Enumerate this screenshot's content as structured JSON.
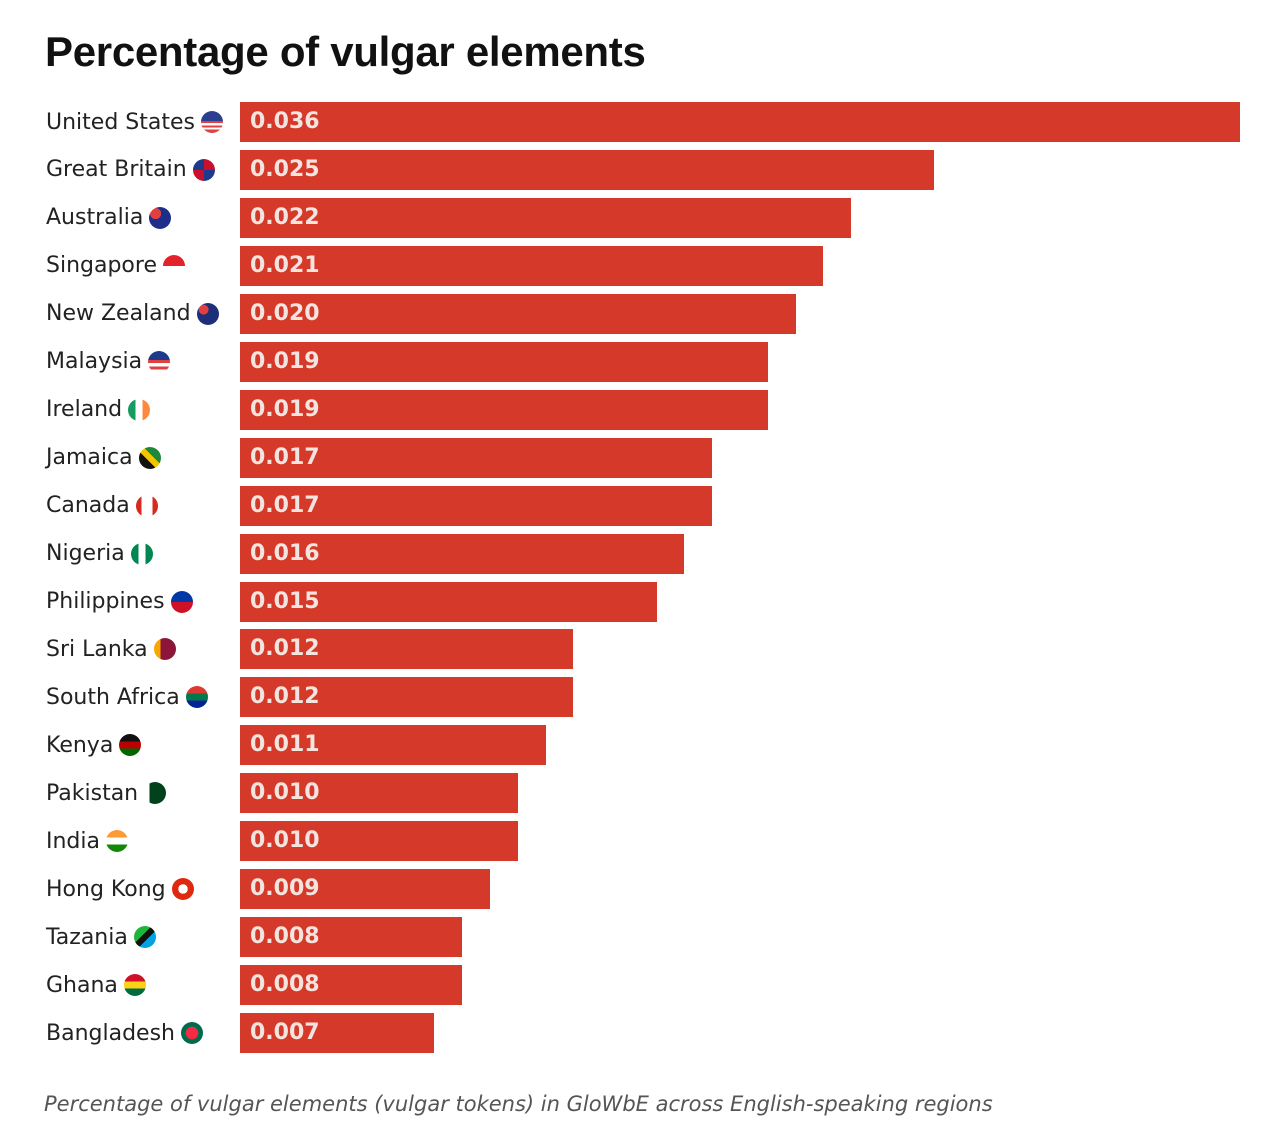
{
  "chart_data": {
    "type": "bar",
    "orientation": "horizontal",
    "title": "Percentage of vulgar elements",
    "caption": "Percentage of vulgar elements (vulgar tokens) in GloWbE across English-speaking regions",
    "xlim": [
      0,
      0.036
    ],
    "bar_color": "#d5392a",
    "categories": [
      "United States",
      "Great Britain",
      "Australia",
      "Singapore",
      "New Zealand",
      "Malaysia",
      "Ireland",
      "Jamaica",
      "Canada",
      "Nigeria",
      "Philippines",
      "Sri Lanka",
      "South Africa",
      "Kenya",
      "Pakistan",
      "India",
      "Hong Kong",
      "Tazania",
      "Ghana",
      "Bangladesh"
    ],
    "values": [
      0.036,
      0.025,
      0.022,
      0.021,
      0.02,
      0.019,
      0.019,
      0.017,
      0.017,
      0.016,
      0.015,
      0.012,
      0.012,
      0.011,
      0.01,
      0.01,
      0.009,
      0.008,
      0.008,
      0.007
    ],
    "value_labels": [
      "0.036",
      "0.025",
      "0.022",
      "0.021",
      "0.020",
      "0.019",
      "0.019",
      "0.017",
      "0.017",
      "0.016",
      "0.015",
      "0.012",
      "0.012",
      "0.011",
      "0.010",
      "0.010",
      "0.009",
      "0.008",
      "0.008",
      "0.007"
    ],
    "flag_icons": [
      "linear-gradient(180deg,#2a3f8f 0 45%,#e24040 45% 55%,#fff 55% 65%,#e24040 65% 75%,#fff 75% 85%,#e24040 85%)",
      "conic-gradient(#c8102e 0 25%,#1e3a8a 0 50%,#c8102e 0 75%,#1e3a8a 0)",
      "radial-gradient(circle at 30% 30%,#e24040 0 25%,#1e2f8a 26%)",
      "linear-gradient(180deg,#e4222a 0 50%,#fff 50%)",
      "radial-gradient(circle at 30% 30%,#e24040 0 22%,#1e2f7a 23%)",
      "linear-gradient(180deg,#1e3a8a 0 40%,#e24040 40% 55%,#fff 55% 70%,#e24040 70% 85%,#fff 85%)",
      "linear-gradient(90deg,#169b62 0 33%,#fff 33% 66%,#ff883e 66%)",
      "linear-gradient(45deg,#111 0 40%,#f5c400 40% 60%,#1a8a3a 60%)",
      "linear-gradient(90deg,#d52b1e 0 25%,#fff 25% 75%,#d52b1e 75%)",
      "linear-gradient(90deg,#008751 0 33%,#fff 33% 66%,#008751 66%)",
      "linear-gradient(180deg,#0038a8 0 50%,#ce1126 50%)",
      "linear-gradient(90deg,#f7a800 0 30%,#8d153a 30%)",
      "linear-gradient(180deg,#de3831 0 33%,#007a4d 33% 66%,#002395 66%)",
      "linear-gradient(180deg,#111 0 33%,#bb0000 33% 66%,#006600 66%)",
      "linear-gradient(90deg,#fff 0 25%,#01411c 25%)",
      "linear-gradient(180deg,#ff9933 0 33%,#fff 33% 66%,#138808 66%)",
      "radial-gradient(circle,#fff 0 30%,#de2910 31%)",
      "linear-gradient(135deg,#1eb53a 0 40%,#111 40% 60%,#00a3dd 60%)",
      "linear-gradient(180deg,#ce1126 0 33%,#fcd116 33% 66%,#006b3f 66%)",
      "radial-gradient(circle,#f42a41 0 40%,#006a4e 41%)"
    ]
  }
}
